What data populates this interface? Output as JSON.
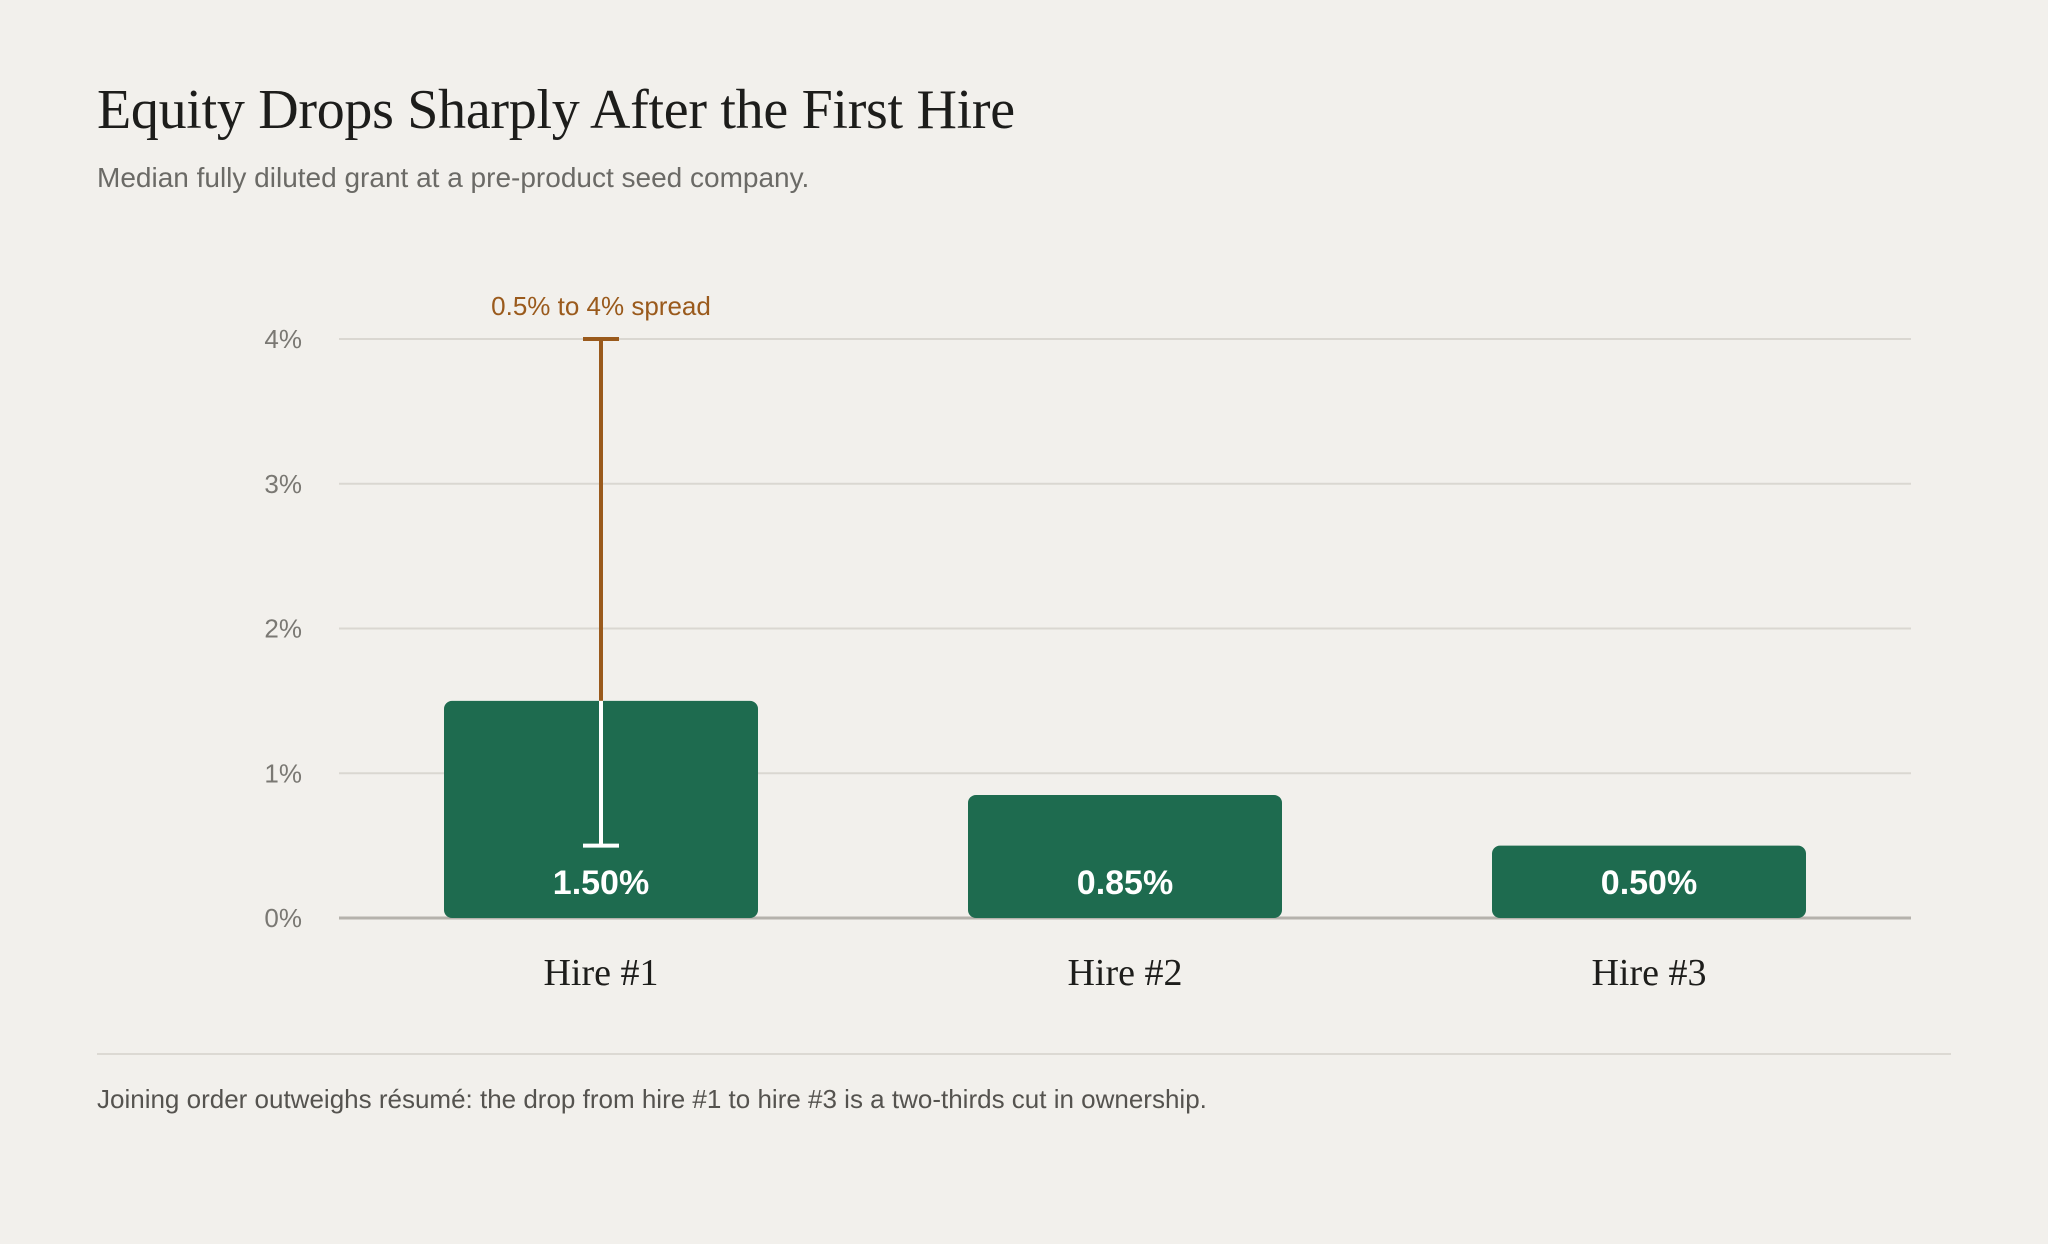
{
  "header": {
    "title": "Equity Drops Sharply After the First Hire",
    "subtitle": "Median fully diluted grant at a pre-product seed company."
  },
  "footer": {
    "note": "Joining order outweighs résumé: the drop from hire #1 to hire #3 is a two-thirds cut in ownership."
  },
  "colors": {
    "bar": "#1e6b4f",
    "range": "#9a5a1c",
    "background": "#f2f0ec"
  },
  "chart_data": {
    "type": "bar",
    "categories": [
      "Hire #1",
      "Hire #2",
      "Hire #3"
    ],
    "values": [
      1.5,
      0.85,
      0.5
    ],
    "value_labels": [
      "1.50%",
      "0.85%",
      "0.50%"
    ],
    "ylim": [
      0,
      4
    ],
    "y_ticks": [
      0,
      1,
      2,
      3,
      4
    ],
    "y_tick_labels": [
      "0%",
      "1%",
      "2%",
      "3%",
      "4%"
    ],
    "grid": true,
    "range": {
      "category": "Hire #1",
      "low": 0.5,
      "high": 4,
      "label": "0.5% to 4% spread"
    }
  }
}
